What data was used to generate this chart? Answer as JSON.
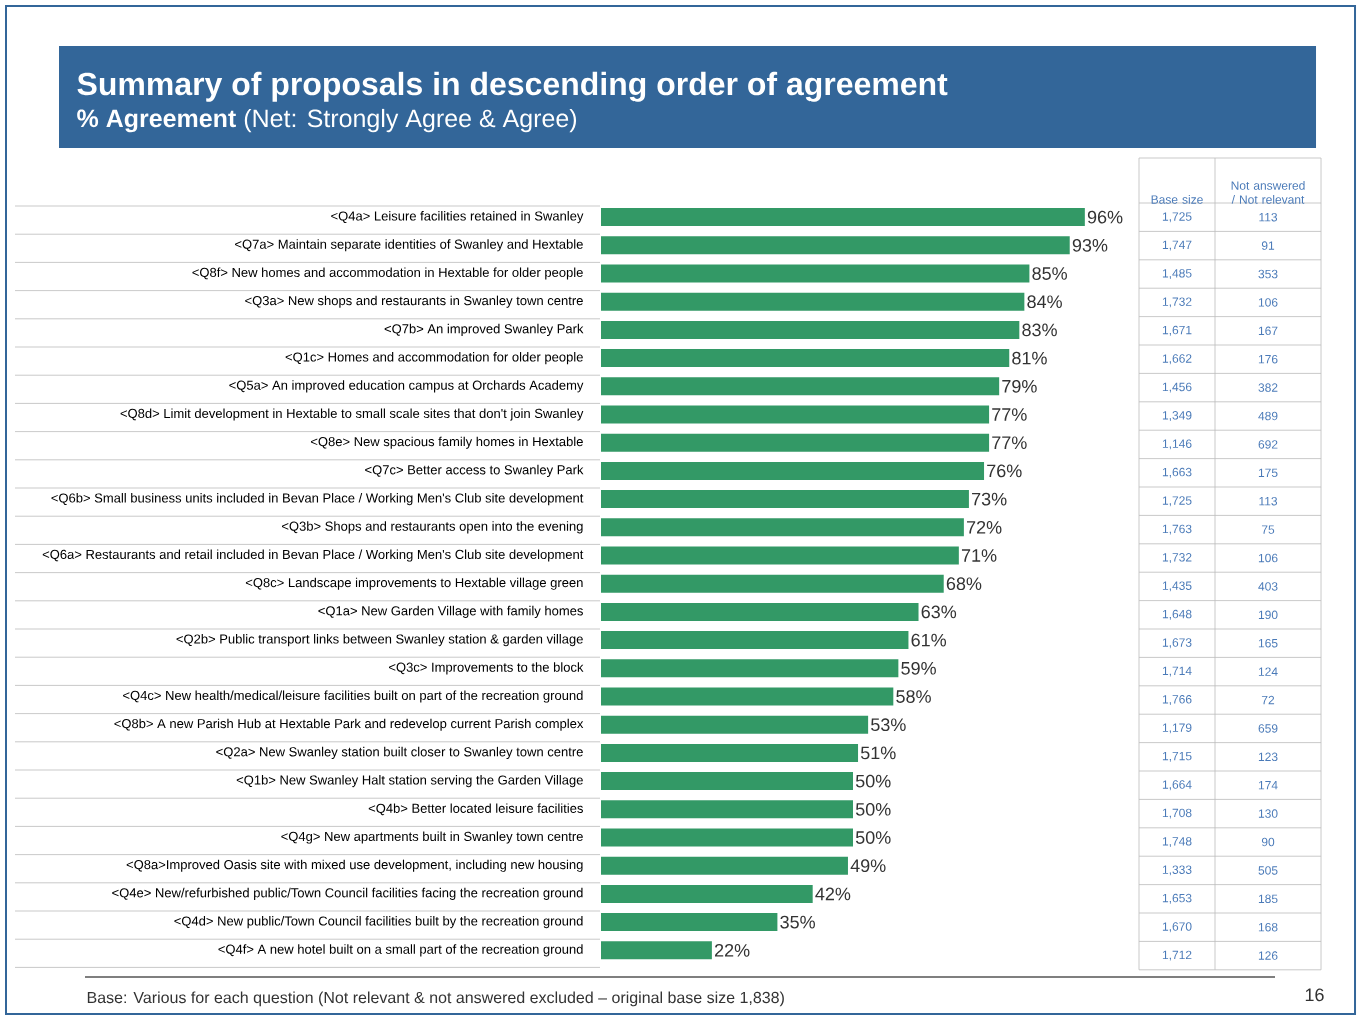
{
  "chart_data": [
    {
      "type": "bar",
      "orientation": "horizontal",
      "title": "Summary of proposals in descending order of agreement",
      "subtitle": "**% Agreement** (Net: Strongly Agree & Agree)",
      "categories": [
        "<Q4a> Leisure facilities retained in Swanley",
        "<Q7a> Maintain separate identities of Swanley and Hextable",
        "<Q8f> New homes and accommodation in Hextable for older people",
        "<Q3a> New shops and restaurants in Swanley town centre",
        "<Q7b> An improved Swanley Park",
        "<Q1c> Homes and accommodation for older people",
        "<Q5a> An improved education campus at Orchards Academy",
        "<Q8d> Limit development in Hextable to small scale sites that don't join Swanley",
        "<Q8e> New spacious family homes in Hextable",
        "<Q7c> Better access to Swanley Park",
        "<Q6b> Small business units included in Bevan Place / Working Men's Club site development",
        "<Q3b> Shops and restaurants open into the evening",
        "<Q6a> Restaurants and retail included in Bevan Place / Working Men's Club site development",
        "<Q8c> Landscape improvements to Hextable village green",
        "<Q1a> New Garden Village with family homes",
        "<Q2b> Public transport links between Swanley station & garden village",
        "<Q3c> Improvements to the block",
        "<Q4c> New health/medical/leisure facilities built on part of the recreation ground",
        "<Q8b> A new Parish Hub at Hextable Park and redevelop current Parish complex",
        "<Q2a> New Swanley station built closer to Swanley town centre",
        "<Q1b> New Swanley Halt station serving the Garden Village",
        "<Q4b> Better located leisure facilities",
        "<Q4g> New apartments built in Swanley town centre",
        "<Q8a>Improved Oasis site with mixed use development, including new housing",
        "<Q4e> New/refurbished public/Town Council facilities facing the recreation ground",
        "<Q4d> New public/Town Council facilities built by the recreation ground",
        "<Q4f> A new hotel built on a small part of the recreation ground"
      ],
      "values": [
        96,
        93,
        85,
        84,
        83,
        81,
        79,
        77,
        77,
        76,
        73,
        72,
        71,
        68,
        63,
        61,
        59,
        58,
        53,
        51,
        50,
        50,
        50,
        49,
        42,
        35,
        22
      ],
      "value_labels": [
        "96%",
        "93%",
        "85%",
        "84%",
        "83%",
        "81%",
        "79%",
        "77%",
        "77%",
        "76%",
        "73%",
        "72%",
        "71%",
        "68%",
        "63%",
        "61%",
        "59%",
        "58%",
        "53%",
        "51%",
        "50%",
        "50%",
        "50%",
        "49%",
        "42%",
        "35%",
        "22%"
      ],
      "color": "#339966",
      "annotations": [
        "Base: Various for each question (Not relevant & not answered excluded – original base size 1,838)",
        "16"
      ]
    },
    {
      "type": "other",
      "categories": [
        "Base size",
        "Not answered / Not relevant"
      ],
      "cell_labels": [
        [
          "1,725",
          "113"
        ],
        [
          "1,747",
          "91"
        ],
        [
          "1,485",
          "353"
        ],
        [
          "1,732",
          "106"
        ],
        [
          "1,671",
          "167"
        ],
        [
          "1,662",
          "176"
        ],
        [
          "1,456",
          "382"
        ],
        [
          "1,349",
          "489"
        ],
        [
          "1,146",
          "692"
        ],
        [
          "1,663",
          "175"
        ],
        [
          "1,725",
          "113"
        ],
        [
          "1,763",
          "75"
        ],
        [
          "1,732",
          "106"
        ],
        [
          "1,435",
          "403"
        ],
        [
          "1,648",
          "190"
        ],
        [
          "1,673",
          "165"
        ],
        [
          "1,714",
          "124"
        ],
        [
          "1,766",
          "72"
        ],
        [
          "1,179",
          "659"
        ],
        [
          "1,715",
          "123"
        ],
        [
          "1,664",
          "174"
        ],
        [
          "1,708",
          "130"
        ],
        [
          "1,748",
          "90"
        ],
        [
          "1,333",
          "505"
        ],
        [
          "1,653",
          "185"
        ],
        [
          "1,670",
          "168"
        ],
        [
          "1,712",
          "126"
        ]
      ]
    }
  ]
}
